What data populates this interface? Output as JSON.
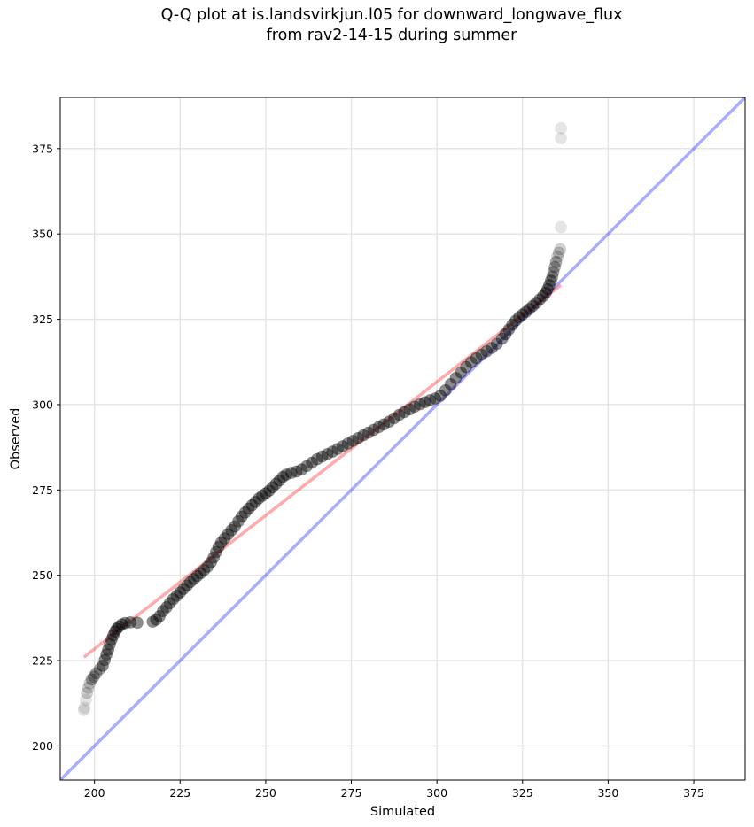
{
  "chart_data": {
    "type": "scatter",
    "title": "Q-Q plot at is.landsvirkjun.l05 for downward_longwave_flux",
    "subtitle": "from rav2-14-15 during summer",
    "xlabel": "Simulated",
    "ylabel": "Observed",
    "xlim": [
      190,
      390
    ],
    "ylim": [
      190,
      390
    ],
    "xticks": [
      200,
      225,
      250,
      275,
      300,
      325,
      350,
      375
    ],
    "yticks": [
      200,
      225,
      250,
      275,
      300,
      325,
      350,
      375
    ],
    "grid": true,
    "series": [
      {
        "kind": "quantile-points",
        "color": "#000000",
        "points": [
          [
            196.9,
            210.5
          ],
          [
            197.1,
            211.2
          ],
          [
            197.5,
            213.5
          ],
          [
            197.8,
            215.5
          ],
          [
            198.2,
            217.0
          ],
          [
            198.6,
            218.3
          ],
          [
            199.2,
            219.5
          ],
          [
            199.8,
            220.3
          ],
          [
            200.5,
            221.3
          ],
          [
            201.5,
            222.5
          ],
          [
            202.4,
            223.5
          ],
          [
            203.0,
            225.2
          ],
          [
            203.5,
            226.8
          ],
          [
            204.0,
            228.2
          ],
          [
            204.5,
            229.8
          ],
          [
            205.0,
            231.2
          ],
          [
            205.5,
            232.4
          ],
          [
            206.0,
            233.5
          ],
          [
            206.5,
            234.3
          ],
          [
            207.2,
            235.0
          ],
          [
            208.0,
            235.6
          ],
          [
            209.0,
            236.0
          ],
          [
            210.5,
            236.2
          ],
          [
            212.5,
            236.1
          ],
          [
            217.0,
            236.4
          ],
          [
            218.0,
            237.0
          ],
          [
            219.0,
            238.0
          ],
          [
            220.0,
            239.5
          ],
          [
            221.0,
            240.6
          ],
          [
            222.0,
            241.8
          ],
          [
            223.0,
            243.0
          ],
          [
            224.0,
            244.0
          ],
          [
            225.0,
            245.0
          ],
          [
            226.0,
            246.0
          ],
          [
            227.0,
            247.0
          ],
          [
            228.0,
            248.0
          ],
          [
            229.0,
            248.9
          ],
          [
            230.0,
            249.8
          ],
          [
            231.0,
            250.6
          ],
          [
            232.0,
            251.5
          ],
          [
            233.0,
            252.5
          ],
          [
            234.0,
            253.8
          ],
          [
            234.8,
            255.2
          ],
          [
            235.5,
            256.8
          ],
          [
            236.2,
            258.3
          ],
          [
            237.0,
            259.6
          ],
          [
            238.0,
            260.8
          ],
          [
            239.0,
            262.0
          ],
          [
            240.0,
            263.2
          ],
          [
            241.0,
            264.3
          ],
          [
            242.0,
            265.8
          ],
          [
            243.0,
            267.2
          ],
          [
            244.0,
            268.4
          ],
          [
            245.0,
            269.5
          ],
          [
            246.0,
            270.5
          ],
          [
            247.0,
            271.5
          ],
          [
            248.0,
            272.5
          ],
          [
            249.0,
            273.3
          ],
          [
            250.0,
            274.0
          ],
          [
            251.0,
            274.8
          ],
          [
            252.0,
            275.8
          ],
          [
            253.0,
            276.8
          ],
          [
            254.0,
            277.8
          ],
          [
            255.0,
            278.8
          ],
          [
            256.0,
            279.5
          ],
          [
            257.5,
            280.0
          ],
          [
            259.0,
            280.4
          ],
          [
            260.5,
            281.0
          ],
          [
            262.0,
            282.0
          ],
          [
            263.5,
            283.0
          ],
          [
            265.0,
            284.0
          ],
          [
            266.5,
            284.8
          ],
          [
            268.0,
            285.5
          ],
          [
            269.5,
            286.2
          ],
          [
            271.0,
            287.0
          ],
          [
            272.5,
            287.8
          ],
          [
            274.0,
            288.6
          ],
          [
            275.5,
            289.4
          ],
          [
            277.0,
            290.2
          ],
          [
            278.5,
            291.0
          ],
          [
            280.0,
            291.8
          ],
          [
            281.5,
            292.6
          ],
          [
            283.0,
            293.4
          ],
          [
            284.5,
            294.2
          ],
          [
            286.0,
            295.0
          ],
          [
            287.5,
            296.0
          ],
          [
            289.0,
            297.0
          ],
          [
            290.5,
            297.8
          ],
          [
            292.0,
            298.6
          ],
          [
            293.5,
            299.4
          ],
          [
            295.0,
            300.1
          ],
          [
            296.5,
            300.7
          ],
          [
            298.0,
            301.3
          ],
          [
            299.5,
            301.8
          ],
          [
            301.0,
            302.6
          ],
          [
            302.5,
            304.2
          ],
          [
            304.0,
            306.0
          ],
          [
            305.5,
            307.8
          ],
          [
            307.0,
            309.4
          ],
          [
            308.5,
            311.0
          ],
          [
            310.0,
            312.4
          ],
          [
            311.5,
            313.6
          ],
          [
            313.0,
            314.6
          ],
          [
            314.5,
            315.6
          ],
          [
            316.0,
            316.6
          ],
          [
            317.5,
            317.8
          ],
          [
            319.0,
            319.3
          ],
          [
            320.0,
            320.6
          ],
          [
            321.0,
            322.0
          ],
          [
            322.0,
            323.4
          ],
          [
            323.0,
            324.6
          ],
          [
            324.0,
            325.6
          ],
          [
            325.0,
            326.4
          ],
          [
            326.0,
            327.2
          ],
          [
            327.0,
            328.0
          ],
          [
            328.0,
            328.9
          ],
          [
            329.0,
            329.8
          ],
          [
            330.0,
            330.8
          ],
          [
            331.0,
            331.8
          ],
          [
            331.8,
            332.8
          ],
          [
            332.3,
            333.8
          ],
          [
            332.8,
            335.0
          ],
          [
            333.3,
            336.3
          ],
          [
            333.7,
            337.5
          ],
          [
            334.0,
            338.8
          ],
          [
            334.4,
            340.3
          ],
          [
            334.8,
            341.8
          ],
          [
            335.2,
            343.3
          ],
          [
            335.6,
            344.5
          ],
          [
            336.0,
            345.5
          ],
          [
            336.2,
            352.0
          ],
          [
            336.2,
            378.0
          ],
          [
            336.2,
            381.0
          ]
        ]
      }
    ],
    "reference_lines": [
      {
        "name": "",
        "color": "#0000ff",
        "alpha": 0.33,
        "x": [
          190,
          390
        ],
        "y": [
          190,
          390
        ]
      },
      {
        "name": "",
        "color": "#ff0000",
        "alpha": 0.33,
        "x": [
          196.9,
          336.2
        ],
        "y": [
          226.0,
          335.0
        ]
      }
    ]
  }
}
